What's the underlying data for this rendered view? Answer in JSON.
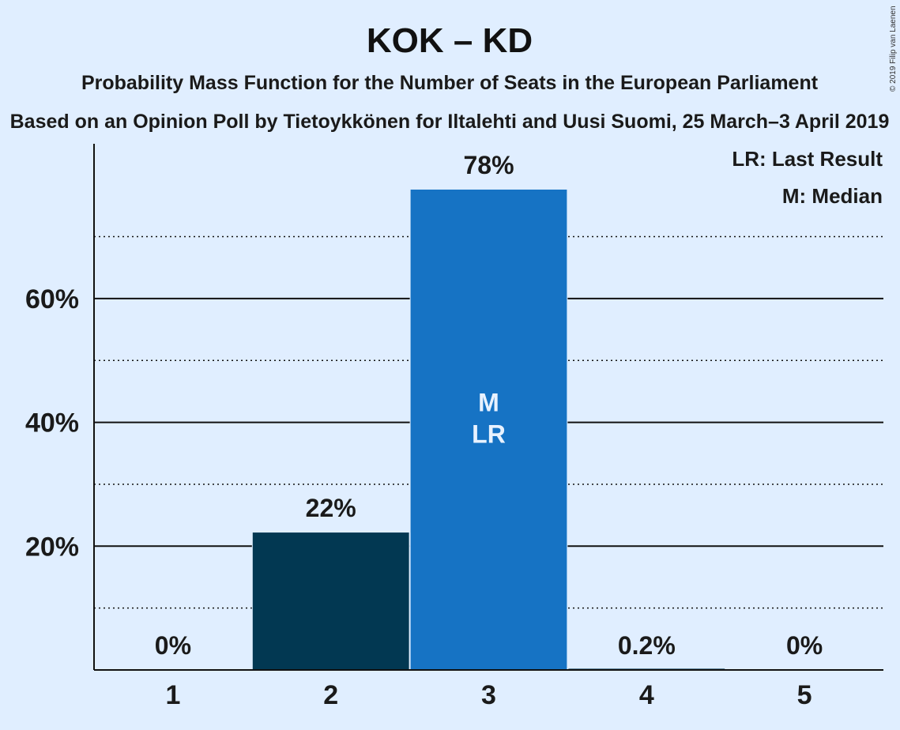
{
  "colors": {
    "background": "#e0eeff",
    "bar_dark": "#023852",
    "bar_highlight": "#1673c4",
    "axis": "#111111"
  },
  "chart_data": {
    "type": "bar",
    "title": "KOK – KD",
    "subtitle": "Probability Mass Function for the Number of Seats in the European Parliament",
    "subtitle2": "Based on an Opinion Poll by Tietoykkönen for Iltalehti and Uusi Suomi, 25 March–3 April 2019",
    "copyright": "© 2019 Filip van Laenen",
    "categories": [
      "1",
      "2",
      "3",
      "4",
      "5"
    ],
    "values": [
      0,
      22.2,
      77.6,
      0.2,
      0
    ],
    "value_labels": [
      "0%",
      "22%",
      "78%",
      "0.2%",
      "0%"
    ],
    "bar_colors": [
      "#023852",
      "#023852",
      "#1673c4",
      "#023852",
      "#023852"
    ],
    "inner_labels": [
      "",
      "",
      "M\nLR",
      "",
      ""
    ],
    "ylim": [
      0,
      85
    ],
    "y_major_ticks": [
      20,
      40,
      60
    ],
    "y_minor_ticks": [
      10,
      30,
      50,
      70
    ],
    "y_tick_labels": [
      "20%",
      "40%",
      "60%"
    ],
    "xlabel": "",
    "ylabel": "",
    "legend": [
      "LR: Last Result",
      "M: Median"
    ],
    "legend_position": "top-right",
    "grid": true
  }
}
